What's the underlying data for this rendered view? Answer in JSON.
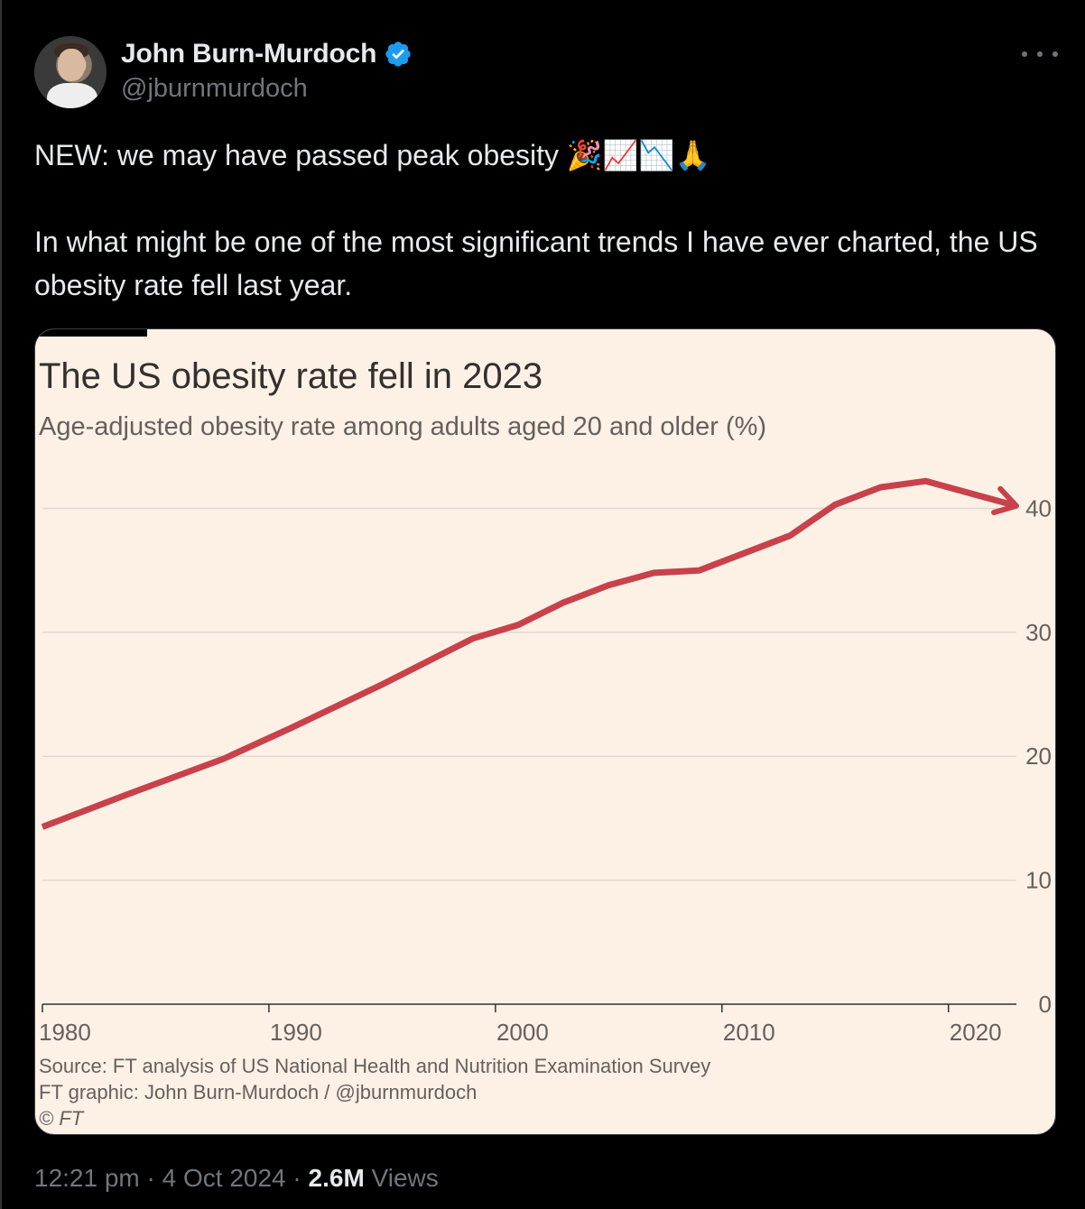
{
  "tweet": {
    "display_name": "John Burn-Murdoch",
    "handle": "@jburnmurdoch",
    "text_line1": "NEW: we may have passed peak obesity 🎉📈📉🙏",
    "text_line2": "In what might be one of the most significant trends I have ever charted, the US obesity rate fell last year.",
    "time": "12:21 pm",
    "separator": "·",
    "date": "4 Oct 2024",
    "views_count": "2.6M",
    "views_label": "Views"
  },
  "icons": {
    "verified": "verified-badge-icon",
    "more": "more-options-icon",
    "verified_color": "#1d9bf0"
  },
  "chart_data": {
    "type": "line",
    "title": "The US obesity rate fell in 2023",
    "subtitle": "Age-adjusted obesity rate among adults aged 20 and older (%)",
    "x_ticks": [
      "1980",
      "1990",
      "2000",
      "2010",
      "2020"
    ],
    "y_ticks": [
      "0",
      "10",
      "20",
      "30",
      "40"
    ],
    "xlim": [
      1980,
      2023
    ],
    "ylim": [
      0,
      42
    ],
    "grid": "horizontal",
    "series": [
      {
        "color": "#c8414b",
        "points": [
          {
            "x": 1980,
            "y": 14.3
          },
          {
            "x": 1984,
            "y": 17.1
          },
          {
            "x": 1988,
            "y": 19.8
          },
          {
            "x": 1991,
            "y": 22.3
          },
          {
            "x": 1995,
            "y": 25.8
          },
          {
            "x": 1999,
            "y": 29.5
          },
          {
            "x": 2001,
            "y": 30.6
          },
          {
            "x": 2003,
            "y": 32.4
          },
          {
            "x": 2005,
            "y": 33.8
          },
          {
            "x": 2007,
            "y": 34.8
          },
          {
            "x": 2009,
            "y": 35.0
          },
          {
            "x": 2013,
            "y": 37.8
          },
          {
            "x": 2015,
            "y": 40.3
          },
          {
            "x": 2017,
            "y": 41.7
          },
          {
            "x": 2019,
            "y": 42.2
          },
          {
            "x": 2023,
            "y": 40.2
          }
        ]
      }
    ],
    "end_arrow": true,
    "source": "Source: FT analysis of US National Health and Nutrition Examination Survey",
    "credit": "FT graphic: John Burn-Murdoch / @jburnmurdoch",
    "copyright": "© FT",
    "colors": {
      "background": "#fdf1e6",
      "grid": "#e3d8ce",
      "axis": "#33302e",
      "text": "#66605c",
      "title": "#33302e"
    }
  }
}
